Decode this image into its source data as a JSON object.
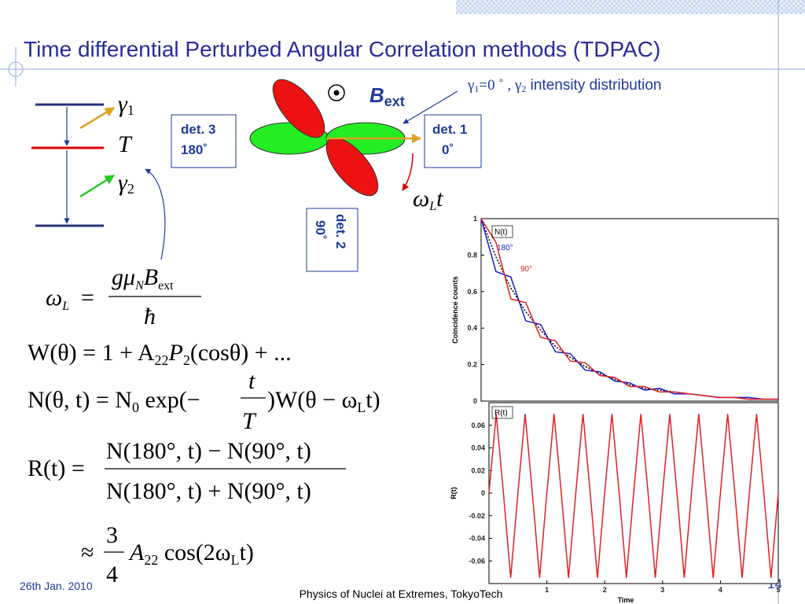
{
  "slide": {
    "title": "Time differential Perturbed Angular Correlation methods (TDPAC)",
    "levels": {
      "gamma1": "γ",
      "gamma1_sub": "1",
      "T": "T",
      "gamma2": "γ",
      "gamma2_sub": "2"
    },
    "det3": {
      "name": "det. 3",
      "angle": "180˚"
    },
    "det1": {
      "name": "det. 1",
      "angle": "0˚"
    },
    "det2": {
      "name": "det. 2",
      "angle": "90˚"
    },
    "field": {
      "symbol": "B",
      "sub": "ext"
    },
    "caption": {
      "g1": "γ",
      "g1_sub": "1",
      "eq": "=0 ˚",
      "comma": " , γ",
      "g2_sub": "2",
      "text": " intensity distribution"
    },
    "rotation": {
      "omega": "ω",
      "sub": "L",
      "t": "t"
    },
    "formulas": [
      [
        "ω",
        "L",
        "=",
        "gμ",
        "N",
        "B",
        "ext",
        "ħ"
      ],
      [
        "W(θ) = 1 + A",
        "22",
        "P",
        "2",
        "(cosθ) + ..."
      ],
      [
        "N(θ, t) = N",
        "0",
        " exp(−",
        "t",
        "T",
        ")W(θ − ω",
        "L",
        "t)"
      ],
      [
        "R(t) =",
        "N(180°, t) − N(90°, t)",
        "N(180°, t) + N(90°, t)"
      ],
      [
        "≈",
        "3",
        "4",
        "A",
        "22",
        " cos(2ω",
        "L",
        "t)"
      ]
    ],
    "footer": {
      "date": "26th Jan. 2010",
      "venue": "Physics of Nuclei at Extremes, TokyoTech",
      "page": "14"
    }
  },
  "chart_data": [
    {
      "type": "line",
      "title": "N(t)",
      "y_label": "Coincidence counts",
      "x": [
        0,
        0.25,
        0.5,
        0.75,
        1,
        1.25,
        1.5,
        1.75,
        2,
        2.25,
        2.5,
        2.75,
        3,
        3.25,
        3.5,
        3.75,
        4,
        4.25,
        4.5,
        4.75,
        5
      ],
      "xlim": [
        0,
        5
      ],
      "ylim": [
        0,
        1
      ],
      "yticks": [
        0,
        0.2,
        0.4,
        0.6,
        0.8,
        1
      ],
      "series": [
        {
          "color": "#000000",
          "dashed": true,
          "values": [
            1,
            0.79,
            0.62,
            0.49,
            0.39,
            0.3,
            0.24,
            0.19,
            0.15,
            0.12,
            0.09,
            0.07,
            0.06,
            0.05,
            0.04,
            0.03,
            0.02,
            0.02,
            0.01,
            0.01,
            0.01
          ]
        },
        {
          "name": "180°",
          "color": "#1a1acc",
          "values": [
            1,
            0.71,
            0.68,
            0.44,
            0.42,
            0.27,
            0.26,
            0.17,
            0.16,
            0.11,
            0.1,
            0.06,
            0.07,
            0.04,
            0.04,
            0.03,
            0.02,
            0.02,
            0.02,
            0.01,
            0.01
          ]
        },
        {
          "name": "90°",
          "color": "#dd2222",
          "values": [
            1,
            0.87,
            0.56,
            0.54,
            0.35,
            0.33,
            0.22,
            0.21,
            0.14,
            0.13,
            0.08,
            0.08,
            0.05,
            0.05,
            0.04,
            0.03,
            0.02,
            0.02,
            0.01,
            0.01,
            0.01
          ]
        }
      ]
    },
    {
      "type": "line",
      "title": "R(t)",
      "y_label": "R(t)",
      "x_label": "Time",
      "x": [
        0,
        0.125,
        0.25,
        0.375,
        0.5,
        0.625,
        0.75,
        0.875,
        1,
        1.125,
        1.25,
        1.375,
        1.5,
        1.625,
        1.75,
        1.875,
        2,
        2.125,
        2.25,
        2.375,
        2.5,
        2.625,
        2.75,
        2.875,
        3,
        3.125,
        3.25,
        3.375,
        3.5,
        3.625,
        3.75,
        3.875,
        4,
        4.125,
        4.25,
        4.375,
        4.5,
        4.625,
        4.75,
        4.875,
        5
      ],
      "xlim": [
        0,
        5
      ],
      "ylim": [
        -0.08,
        0.08
      ],
      "xticks": [
        1,
        2,
        3,
        4,
        5
      ],
      "yticks": [
        0.06,
        0.04,
        0.02,
        0,
        -0.02,
        -0.04,
        -0.06
      ],
      "series": [
        {
          "color": "#dd2222",
          "values": [
            0,
            0.07,
            0,
            -0.075,
            0,
            0.07,
            0,
            -0.075,
            0,
            0.07,
            0,
            -0.075,
            0,
            0.07,
            0,
            -0.075,
            0,
            0.07,
            0,
            -0.075,
            0,
            0.07,
            0,
            -0.075,
            0,
            0.07,
            0,
            -0.075,
            0,
            0.07,
            0,
            -0.075,
            0,
            0.07,
            0,
            -0.075,
            0,
            0.07,
            0,
            -0.075,
            0
          ]
        }
      ]
    }
  ]
}
